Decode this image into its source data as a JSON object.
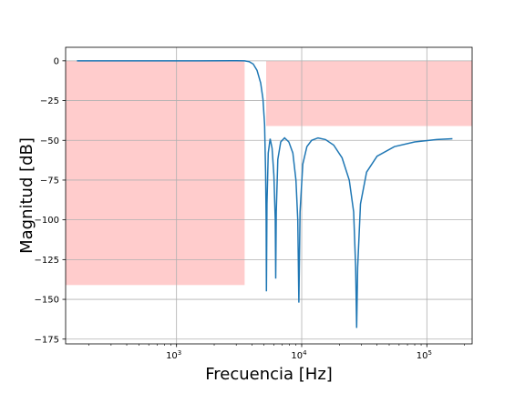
{
  "chart_data": {
    "type": "line",
    "xlabel": "Frecuencia [Hz]",
    "ylabel": "Magnitud [dB]",
    "xscale": "log",
    "xlim": [
      130,
      230000
    ],
    "ylim": [
      -178,
      8.5
    ],
    "grid": true,
    "x_ticks": [
      {
        "value": 1000,
        "base": "10",
        "exp": "3"
      },
      {
        "value": 10000,
        "base": "10",
        "exp": "4"
      },
      {
        "value": 100000,
        "base": "10",
        "exp": "5"
      }
    ],
    "y_ticks": [
      0,
      -25,
      -50,
      -75,
      -100,
      -125,
      -150,
      -175
    ],
    "line_color": "#1f77b4",
    "region_color": "#ff0000",
    "region_opacity": 0.2,
    "regions": [
      {
        "x0": 130,
        "x1": 3500,
        "y0": -141,
        "y1": 0
      },
      {
        "x0": 5200,
        "x1": 230000,
        "y0": -41,
        "y1": 0
      }
    ],
    "series": [
      {
        "points": [
          [
            160,
            0
          ],
          [
            500,
            0
          ],
          [
            1500,
            0
          ],
          [
            3000,
            0.1
          ],
          [
            3500,
            0
          ],
          [
            3800,
            -0.5
          ],
          [
            4100,
            -2
          ],
          [
            4400,
            -6
          ],
          [
            4700,
            -14
          ],
          [
            4900,
            -24
          ],
          [
            5050,
            -40
          ],
          [
            5150,
            -70
          ],
          [
            5200,
            -100
          ],
          [
            5230,
            -145
          ],
          [
            5280,
            -90
          ],
          [
            5400,
            -58
          ],
          [
            5600,
            -49
          ],
          [
            5800,
            -55
          ],
          [
            6000,
            -72
          ],
          [
            6150,
            -100
          ],
          [
            6200,
            -137
          ],
          [
            6260,
            -95
          ],
          [
            6450,
            -62
          ],
          [
            6800,
            -51
          ],
          [
            7300,
            -48.5
          ],
          [
            7900,
            -51
          ],
          [
            8500,
            -58
          ],
          [
            9000,
            -75
          ],
          [
            9300,
            -100
          ],
          [
            9500,
            -152
          ],
          [
            9700,
            -95
          ],
          [
            10200,
            -65
          ],
          [
            11000,
            -54
          ],
          [
            12000,
            -50
          ],
          [
            13500,
            -48.5
          ],
          [
            15500,
            -49.5
          ],
          [
            18000,
            -53
          ],
          [
            21000,
            -61
          ],
          [
            24000,
            -75
          ],
          [
            26000,
            -95
          ],
          [
            27000,
            -130
          ],
          [
            27500,
            -168
          ],
          [
            28000,
            -130
          ],
          [
            29500,
            -90
          ],
          [
            33000,
            -70
          ],
          [
            40000,
            -60
          ],
          [
            55000,
            -54
          ],
          [
            80000,
            -51
          ],
          [
            120000,
            -49.5
          ],
          [
            160000,
            -49
          ]
        ]
      }
    ]
  }
}
